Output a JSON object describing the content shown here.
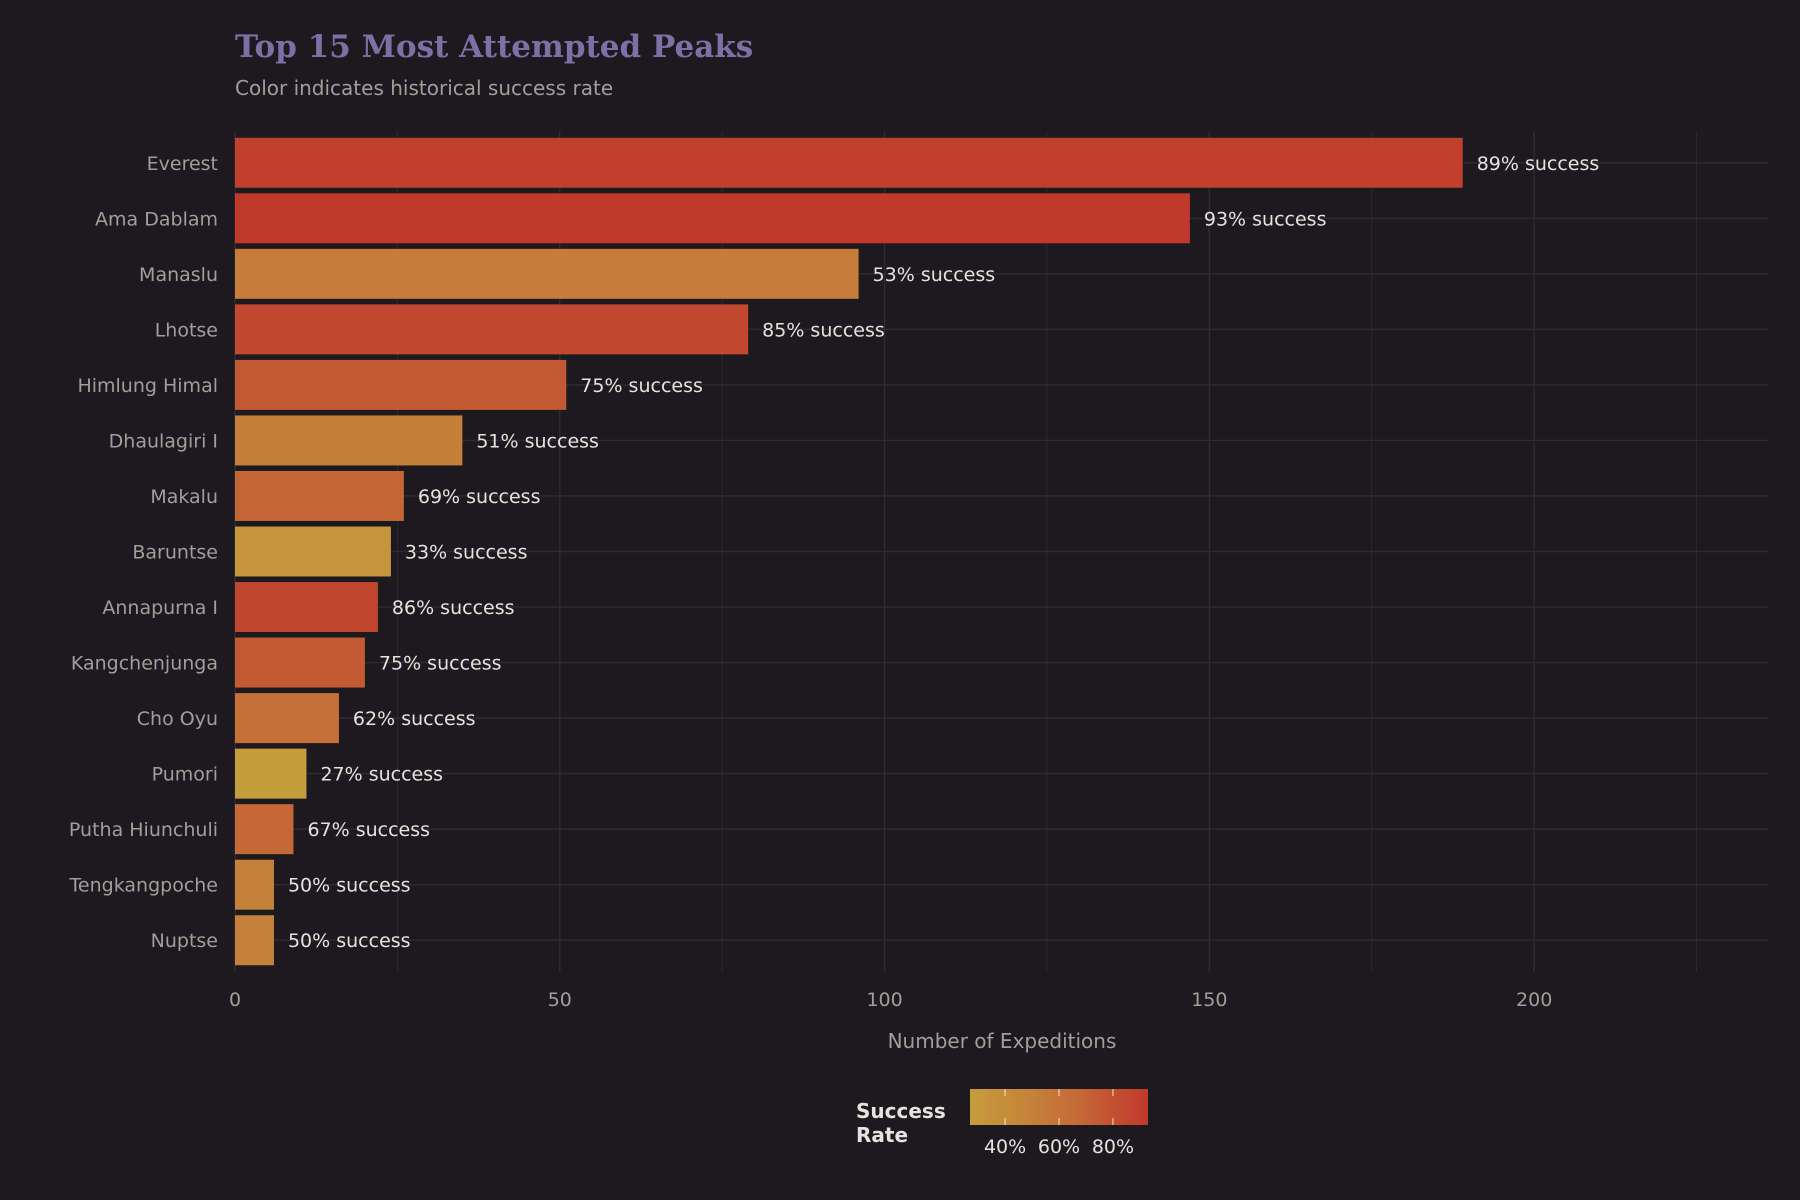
{
  "chart_data": {
    "type": "bar",
    "orientation": "horizontal",
    "title": "Top 15 Most Attempted Peaks",
    "subtitle": "Color indicates historical success rate",
    "xlabel": "Number of Expeditions",
    "ylabel": "",
    "xlim": [
      0,
      236
    ],
    "x_ticks": [
      0,
      50,
      100,
      150,
      200
    ],
    "grid": true,
    "categories": [
      "Everest",
      "Ama Dablam",
      "Manaslu",
      "Lhotse",
      "Himlung Himal",
      "Dhaulagiri I",
      "Makalu",
      "Baruntse",
      "Annapurna I",
      "Kangchenjunga",
      "Cho Oyu",
      "Pumori",
      "Putha Hiunchuli",
      "Tengkangpoche",
      "Nuptse"
    ],
    "values": [
      189,
      147,
      96,
      79,
      51,
      35,
      26,
      24,
      22,
      20,
      16,
      11,
      9,
      6,
      6
    ],
    "success_rate": [
      89,
      93,
      53,
      85,
      75,
      51,
      69,
      33,
      86,
      75,
      62,
      27,
      67,
      50,
      50
    ],
    "data_labels": [
      "89% success",
      "93% success",
      "53% success",
      "85% success",
      "75% success",
      "51% success",
      "69% success",
      "33% success",
      "86% success",
      "75% success",
      "62% success",
      "27% success",
      "67% success",
      "50% success",
      "50% success"
    ],
    "legend": {
      "title_lines": [
        "Success",
        "Rate"
      ],
      "position": "bottom",
      "range": [
        27,
        93
      ],
      "ticks": [
        40,
        60,
        80
      ],
      "tick_labels": [
        "40%",
        "60%",
        "80%"
      ],
      "low_color": "#c59d3b",
      "high_color": "#c0392b"
    }
  },
  "colors": {
    "background": "#1c1a1f",
    "title": "#7e6fa6",
    "grid": "#2e2c32"
  }
}
